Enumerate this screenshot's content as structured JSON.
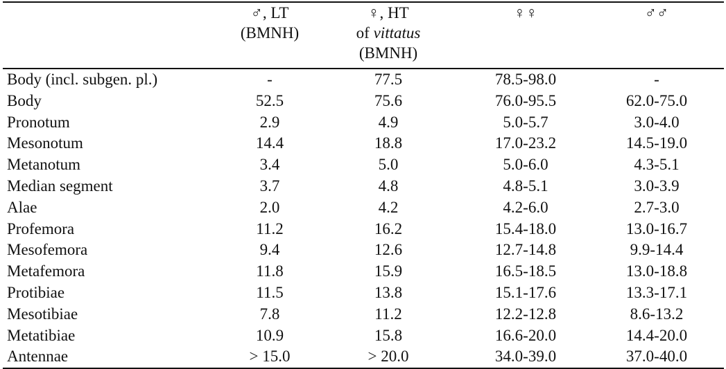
{
  "header": {
    "stub": "",
    "col1": {
      "line1": "♂, LT",
      "line2": "(BMNH)"
    },
    "col2": {
      "line1": "♀, HT",
      "line2_prefix": "of ",
      "line2_italic": "vittatus",
      "line3": "(BMNH)"
    },
    "col3": {
      "line1": "♀♀"
    },
    "col4": {
      "line1": "♂♂"
    }
  },
  "rows": [
    {
      "label": "Body (incl. subgen. pl.)",
      "v1": "-",
      "v2": "77.5",
      "v3": "78.5-98.0",
      "v4": "-"
    },
    {
      "label": "Body",
      "v1": "52.5",
      "v2": "75.6",
      "v3": "76.0-95.5",
      "v4": "62.0-75.0"
    },
    {
      "label": "Pronotum",
      "v1": "2.9",
      "v2": "4.9",
      "v3": "5.0-5.7",
      "v4": "3.0-4.0"
    },
    {
      "label": "Mesonotum",
      "v1": "14.4",
      "v2": "18.8",
      "v3": "17.0-23.2",
      "v4": "14.5-19.0"
    },
    {
      "label": "Metanotum",
      "v1": "3.4",
      "v2": "5.0",
      "v3": "5.0-6.0",
      "v4": "4.3-5.1"
    },
    {
      "label": "Median segment",
      "v1": "3.7",
      "v2": "4.8",
      "v3": "4.8-5.1",
      "v4": "3.0-3.9"
    },
    {
      "label": "Alae",
      "v1": "2.0",
      "v2": "4.2",
      "v3": "4.2-6.0",
      "v4": "2.7-3.0"
    },
    {
      "label": "Profemora",
      "v1": "11.2",
      "v2": "16.2",
      "v3": "15.4-18.0",
      "v4": "13.0-16.7"
    },
    {
      "label": "Mesofemora",
      "v1": "9.4",
      "v2": "12.6",
      "v3": "12.7-14.8",
      "v4": "9.9-14.4"
    },
    {
      "label": "Metafemora",
      "v1": "11.8",
      "v2": "15.9",
      "v3": "16.5-18.5",
      "v4": "13.0-18.8"
    },
    {
      "label": "Protibiae",
      "v1": "11.5",
      "v2": "13.8",
      "v3": "15.1-17.6",
      "v4": "13.3-17.1"
    },
    {
      "label": "Mesotibiae",
      "v1": "7.8",
      "v2": "11.2",
      "v3": "12.2-12.8",
      "v4": "8.6-13.2"
    },
    {
      "label": "Metatibiae",
      "v1": "10.9",
      "v2": "15.8",
      "v3": "16.6-20.0",
      "v4": "14.4-20.0"
    },
    {
      "label": "Antennae",
      "v1": "> 15.0",
      "v2": "> 20.0",
      "v3": "34.0-39.0",
      "v4": "37.0-40.0"
    }
  ]
}
